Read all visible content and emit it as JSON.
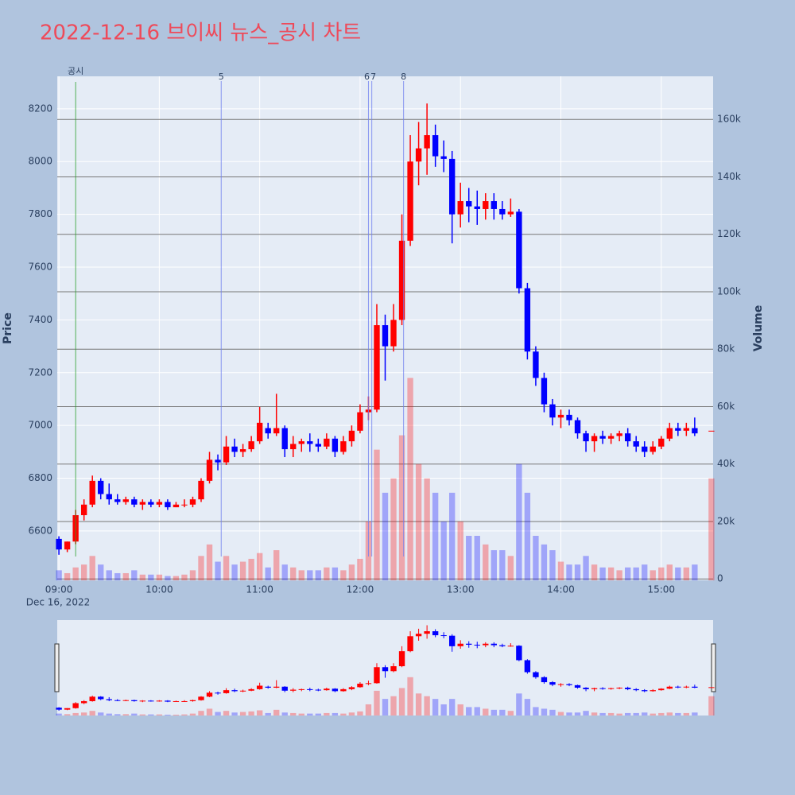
{
  "chart_data": {
    "type": "candlestick",
    "title": "2022-12-16 브이씨 뉴스_공시 차트",
    "ylabel": "Price",
    "y2label": "Volume",
    "x_sublabel": "Dec 16, 2022",
    "increasing_color": "#ff0000",
    "decreasing_color": "#0000ff",
    "x": [
      "09:00",
      "09:05",
      "09:10",
      "09:15",
      "09:20",
      "09:25",
      "09:30",
      "09:35",
      "09:40",
      "09:45",
      "09:50",
      "09:55",
      "10:00",
      "10:05",
      "10:10",
      "10:15",
      "10:20",
      "10:25",
      "10:30",
      "10:35",
      "10:40",
      "10:45",
      "10:50",
      "10:55",
      "11:00",
      "11:05",
      "11:10",
      "11:15",
      "11:20",
      "11:25",
      "11:30",
      "11:35",
      "11:40",
      "11:45",
      "11:50",
      "11:55",
      "12:00",
      "12:05",
      "12:10",
      "12:15",
      "12:20",
      "12:25",
      "12:30",
      "12:35",
      "12:40",
      "12:45",
      "12:50",
      "12:55",
      "13:00",
      "13:05",
      "13:10",
      "13:15",
      "13:20",
      "13:25",
      "13:30",
      "13:35",
      "13:40",
      "13:45",
      "13:50",
      "13:55",
      "14:00",
      "14:05",
      "14:10",
      "14:15",
      "14:20",
      "14:25",
      "14:30",
      "14:35",
      "14:40",
      "14:45",
      "14:50",
      "14:55",
      "15:00",
      "15:05",
      "15:10",
      "15:15",
      "15:20",
      "15:30"
    ],
    "open": [
      6570,
      6530,
      6560,
      6660,
      6700,
      6790,
      6740,
      6720,
      6710,
      6720,
      6700,
      6710,
      6700,
      6710,
      6690,
      6700,
      6700,
      6720,
      6790,
      6870,
      6860,
      6920,
      6900,
      6910,
      6940,
      6990,
      6970,
      6990,
      6910,
      6930,
      6940,
      6930,
      6920,
      6950,
      6900,
      6940,
      6980,
      7050,
      7060,
      7380,
      7300,
      7400,
      7700,
      8000,
      8050,
      8100,
      8020,
      8010,
      7800,
      7850,
      7830,
      7820,
      7850,
      7820,
      7800,
      7810,
      7520,
      7280,
      7180,
      7080,
      7030,
      7040,
      7020,
      6970,
      6940,
      6960,
      6950,
      6960,
      6970,
      6940,
      6920,
      6900,
      6920,
      6950,
      6990,
      6980,
      6990,
      6980
    ],
    "high": [
      6580,
      6560,
      6680,
      6720,
      6810,
      6800,
      6780,
      6740,
      6730,
      6730,
      6720,
      6720,
      6720,
      6720,
      6710,
      6720,
      6730,
      6800,
      6900,
      6890,
      6960,
      6950,
      6930,
      6960,
      7070,
      7010,
      7120,
      7000,
      6960,
      6950,
      6970,
      6950,
      6970,
      6960,
      6960,
      7000,
      7080,
      7110,
      7460,
      7420,
      7460,
      7800,
      8100,
      8150,
      8220,
      8140,
      8080,
      8040,
      7920,
      7900,
      7890,
      7880,
      7880,
      7850,
      7860,
      7820,
      7540,
      7300,
      7200,
      7100,
      7060,
      7060,
      7030,
      6980,
      6970,
      6980,
      6970,
      6980,
      6990,
      6960,
      6940,
      6940,
      6960,
      7010,
      7010,
      7010,
      7030,
      6980
    ],
    "low": [
      6510,
      6520,
      6550,
      6640,
      6690,
      6720,
      6700,
      6700,
      6700,
      6690,
      6680,
      6690,
      6690,
      6680,
      6690,
      6690,
      6690,
      6710,
      6780,
      6830,
      6850,
      6880,
      6880,
      6900,
      6930,
      6950,
      6960,
      6880,
      6880,
      6900,
      6900,
      6900,
      6910,
      6880,
      6890,
      6920,
      6970,
      7020,
      7050,
      7170,
      7280,
      7380,
      7680,
      7910,
      7950,
      7980,
      7960,
      7690,
      7750,
      7770,
      7760,
      7780,
      7780,
      7780,
      7790,
      7500,
      7250,
      7150,
      7050,
      7000,
      6990,
      7000,
      6950,
      6900,
      6900,
      6930,
      6930,
      6940,
      6920,
      6900,
      6880,
      6890,
      6910,
      6940,
      6960,
      6960,
      6960,
      6980
    ],
    "close": [
      6530,
      6560,
      6660,
      6700,
      6790,
      6740,
      6720,
      6710,
      6720,
      6700,
      6710,
      6700,
      6710,
      6690,
      6700,
      6700,
      6720,
      6790,
      6870,
      6860,
      6920,
      6900,
      6910,
      6940,
      7010,
      6970,
      6990,
      6910,
      6930,
      6940,
      6930,
      6920,
      6950,
      6900,
      6940,
      6980,
      7050,
      7060,
      7380,
      7300,
      7400,
      7700,
      8000,
      8050,
      8100,
      8020,
      8010,
      7800,
      7850,
      7830,
      7820,
      7850,
      7820,
      7800,
      7810,
      7520,
      7280,
      7180,
      7080,
      7030,
      7040,
      7020,
      6970,
      6940,
      6960,
      6950,
      6960,
      6970,
      6940,
      6920,
      6900,
      6920,
      6950,
      6990,
      6980,
      6990,
      6970,
      6980
    ],
    "volume": [
      3000,
      2000,
      4000,
      5000,
      8000,
      5000,
      3000,
      2000,
      2000,
      3000,
      1500,
      1500,
      1500,
      1000,
      1000,
      1500,
      3000,
      8000,
      12000,
      6000,
      8000,
      5000,
      6000,
      7000,
      9000,
      4000,
      10000,
      5000,
      4000,
      3000,
      3000,
      3000,
      4000,
      4000,
      3000,
      5000,
      7000,
      20000,
      45000,
      30000,
      35000,
      50000,
      70000,
      40000,
      35000,
      30000,
      20000,
      30000,
      20000,
      15000,
      15000,
      12000,
      10000,
      10000,
      8000,
      40000,
      30000,
      15000,
      12000,
      10000,
      6000,
      5000,
      5000,
      8000,
      5000,
      4000,
      4000,
      3000,
      4000,
      4000,
      5000,
      3000,
      4000,
      5000,
      4000,
      4000,
      5000,
      35000
    ],
    "xlim": [
      "08:59",
      "15:31"
    ],
    "xticks": [
      "09:00",
      "10:00",
      "11:00",
      "12:00",
      "13:00",
      "14:00",
      "15:00"
    ],
    "ylim": [
      6413,
      8323
    ],
    "yticks": [
      6600,
      6800,
      7000,
      7200,
      7400,
      7600,
      7800,
      8000,
      8200
    ],
    "y2lim": [
      -500,
      175000
    ],
    "y2ticks": [
      0,
      {
        "value": 20000,
        "label": "20k"
      },
      {
        "value": 40000,
        "label": "40k"
      },
      {
        "value": 60000,
        "label": "60k"
      },
      {
        "value": 80000,
        "label": "80k"
      },
      {
        "value": 100000,
        "label": "100k"
      },
      {
        "value": 120000,
        "label": "120k"
      },
      {
        "value": 140000,
        "label": "140k"
      },
      {
        "value": 160000,
        "label": "160k"
      }
    ],
    "annotations": [
      {
        "x": "09:10",
        "text": "공시",
        "color": "#2ca02c"
      },
      {
        "x": "10:37",
        "text": "5",
        "color": "#6f7fef"
      },
      {
        "x": "12:05",
        "text": "6",
        "color": "#6f7fef"
      },
      {
        "x": "12:07",
        "text": "7",
        "color": "#6f7fef"
      },
      {
        "x": "12:26",
        "text": "8",
        "color": "#6f7fef"
      }
    ]
  }
}
